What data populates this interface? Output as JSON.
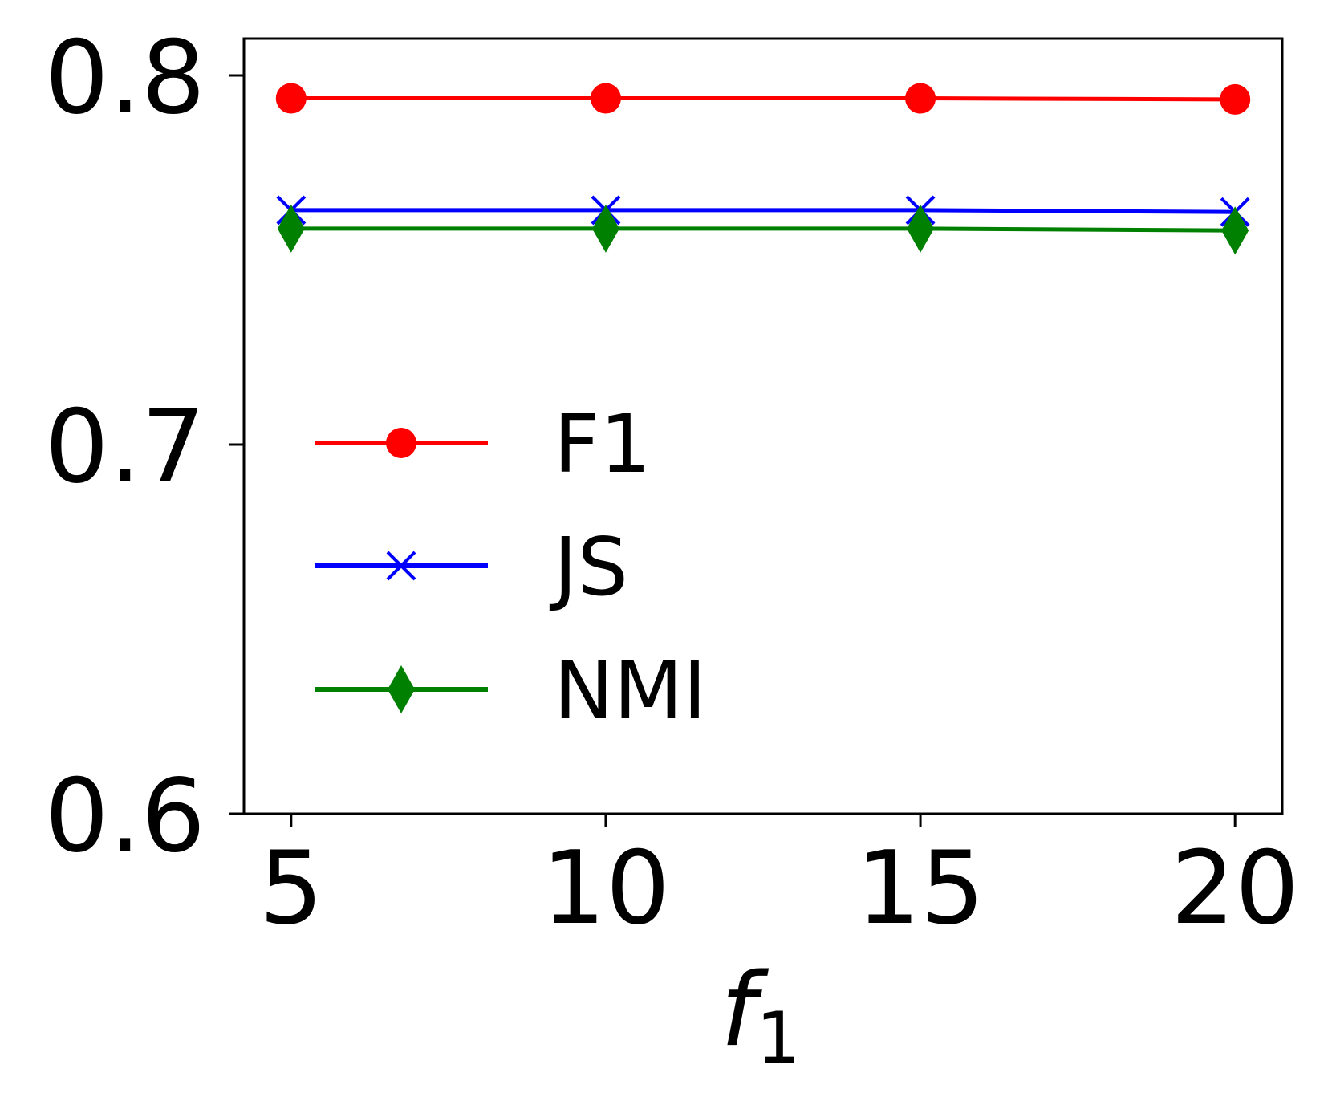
{
  "chart_data": {
    "type": "line",
    "title": "",
    "xlabel": "f",
    "xlabel_subscript": "1",
    "ylabel": "",
    "x": [
      5,
      10,
      15,
      20
    ],
    "xticks": [
      "5",
      "10",
      "15",
      "20"
    ],
    "yticks": [
      "0.6",
      "0.7",
      "0.8"
    ],
    "ytick_values": [
      0.6,
      0.7,
      0.8
    ],
    "ylim": [
      0.6,
      0.81
    ],
    "xlim": [
      4.25,
      20.75
    ],
    "grid": false,
    "legend_position": "center-left",
    "series": [
      {
        "name": "F1",
        "values": [
          0.7938,
          0.7938,
          0.7938,
          0.7935
        ],
        "color": "#ff0000",
        "marker": "circle"
      },
      {
        "name": "JS",
        "values": [
          0.7635,
          0.7635,
          0.7635,
          0.763
        ],
        "color": "#0000ff",
        "marker": "x"
      },
      {
        "name": "NMI",
        "values": [
          0.7585,
          0.7585,
          0.7585,
          0.758
        ],
        "color": "#008000",
        "marker": "diamond"
      }
    ]
  }
}
